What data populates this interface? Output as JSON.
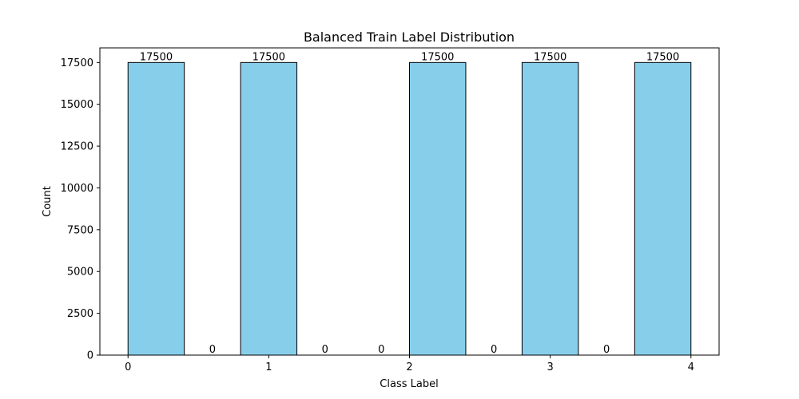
{
  "chart_data": {
    "type": "bar",
    "title": "Balanced Train Label Distribution",
    "xlabel": "Class Label",
    "ylabel": "Count",
    "xlim": [
      -0.2,
      4.2
    ],
    "ylim": [
      0,
      18375
    ],
    "x_ticks": [
      0,
      1,
      2,
      3,
      4
    ],
    "x_tick_labels": [
      "0",
      "1",
      "2",
      "3",
      "4"
    ],
    "y_ticks": [
      0,
      2500,
      5000,
      7500,
      10000,
      12500,
      15000,
      17500
    ],
    "y_tick_labels": [
      "0",
      "2500",
      "5000",
      "7500",
      "10000",
      "12500",
      "15000",
      "17500"
    ],
    "bins": [
      {
        "x0": 0.0,
        "x1": 0.4,
        "value": 17500,
        "label": "17500"
      },
      {
        "x0": 0.4,
        "x1": 0.8,
        "value": 0,
        "label": "0"
      },
      {
        "x0": 0.8,
        "x1": 1.2,
        "value": 17500,
        "label": "17500"
      },
      {
        "x0": 1.2,
        "x1": 1.6,
        "value": 0,
        "label": "0"
      },
      {
        "x0": 1.6,
        "x1": 2.0,
        "value": 0,
        "label": "0"
      },
      {
        "x0": 2.0,
        "x1": 2.4,
        "value": 17500,
        "label": "17500"
      },
      {
        "x0": 2.4,
        "x1": 2.8,
        "value": 0,
        "label": "0"
      },
      {
        "x0": 2.8,
        "x1": 3.2,
        "value": 17500,
        "label": "17500"
      },
      {
        "x0": 3.2,
        "x1": 3.6,
        "value": 0,
        "label": "0"
      },
      {
        "x0": 3.6,
        "x1": 4.0,
        "value": 17500,
        "label": "17500"
      }
    ],
    "bar_color": "#87ceeb",
    "edge_color": "#000000",
    "grid": false,
    "legend": "none"
  }
}
